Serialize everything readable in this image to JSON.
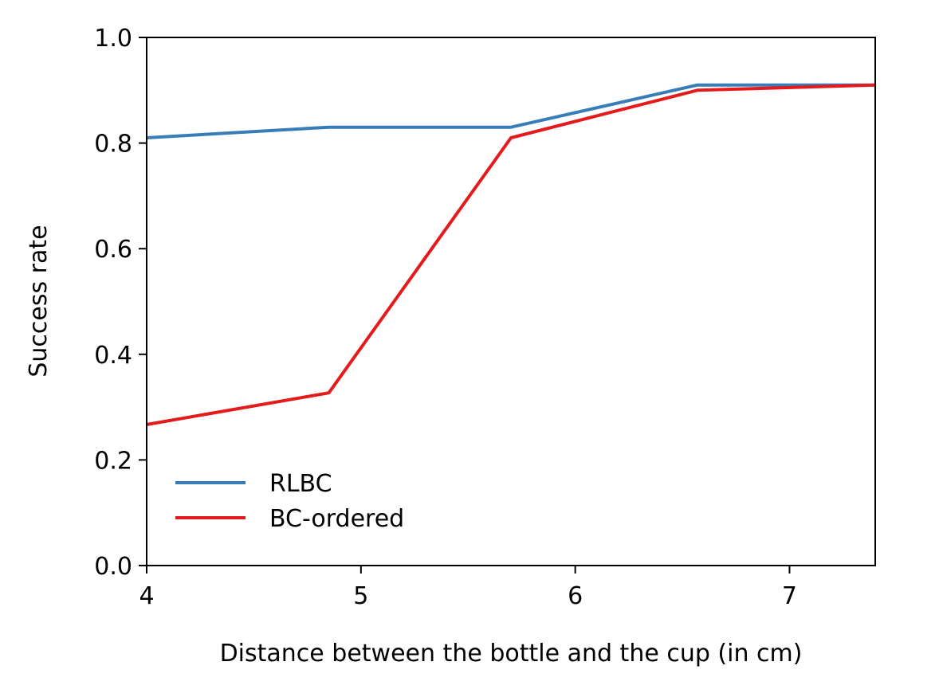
{
  "chart_data": {
    "type": "line",
    "title": "",
    "xlabel": "Distance between the bottle and the cup (in cm)",
    "ylabel": "Success rate",
    "xlim": [
      4,
      7.4
    ],
    "ylim": [
      0.0,
      1.0
    ],
    "xticks": [
      4,
      5,
      6,
      7
    ],
    "xtick_labels": [
      "4",
      "5",
      "6",
      "7"
    ],
    "yticks": [
      0.0,
      0.2,
      0.4,
      0.6,
      0.8,
      1.0
    ],
    "ytick_labels": [
      "0.0",
      "0.2",
      "0.4",
      "0.6",
      "0.8",
      "1.0"
    ],
    "grid": false,
    "legend": "lower-left",
    "series": [
      {
        "name": "RLBC",
        "color": "#377eb8",
        "x": [
          4.0,
          4.85,
          5.7,
          6.57,
          7.4
        ],
        "y": [
          0.81,
          0.83,
          0.83,
          0.91,
          0.91
        ]
      },
      {
        "name": "BC-ordered",
        "color": "#e41a1c",
        "x": [
          4.0,
          4.85,
          5.7,
          6.57,
          7.4
        ],
        "y": [
          0.267,
          0.327,
          0.81,
          0.9,
          0.91
        ]
      }
    ]
  }
}
